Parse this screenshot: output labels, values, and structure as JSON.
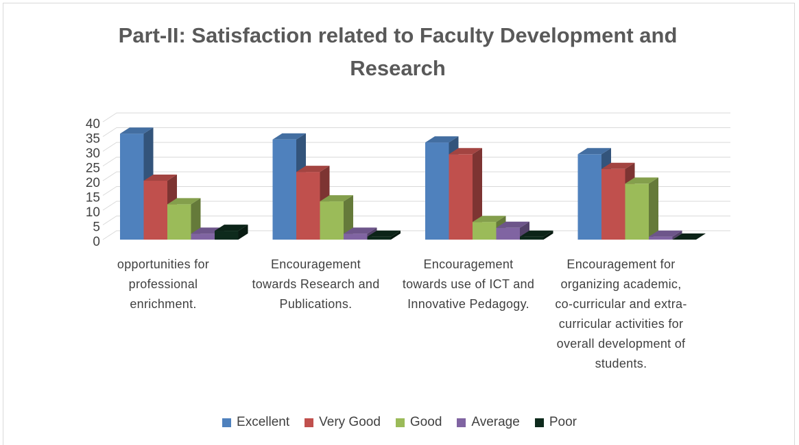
{
  "chart_data": {
    "type": "bar3d",
    "title": "Part-II: Satisfaction related to Faculty Development and Research",
    "categories": [
      "opportunities for professional enrichment.",
      "Encouragement towards Research and Publications.",
      "Encouragement towards use of ICT and Innovative Pedagogy.",
      "Encouragement for organizing academic, co-curricular and extra-curricular activities for overall development of students."
    ],
    "series": [
      {
        "name": "Excellent",
        "color": "#4f81bd",
        "values": [
          36,
          34,
          33,
          29
        ]
      },
      {
        "name": "Very Good",
        "color": "#c0504d",
        "values": [
          20,
          23,
          29,
          24
        ]
      },
      {
        "name": "Good",
        "color": "#9bbb59",
        "values": [
          12,
          13,
          6,
          19
        ]
      },
      {
        "name": "Average",
        "color": "#8064a2",
        "values": [
          2,
          2,
          4,
          1
        ]
      },
      {
        "name": "Poor",
        "color": "#0e2a1c",
        "values": [
          3,
          1,
          1,
          0
        ]
      }
    ],
    "ylim": [
      0,
      40
    ],
    "yticks": [
      0,
      5,
      10,
      15,
      20,
      25,
      30,
      35,
      40
    ],
    "grid": true,
    "legend": "bottom"
  }
}
